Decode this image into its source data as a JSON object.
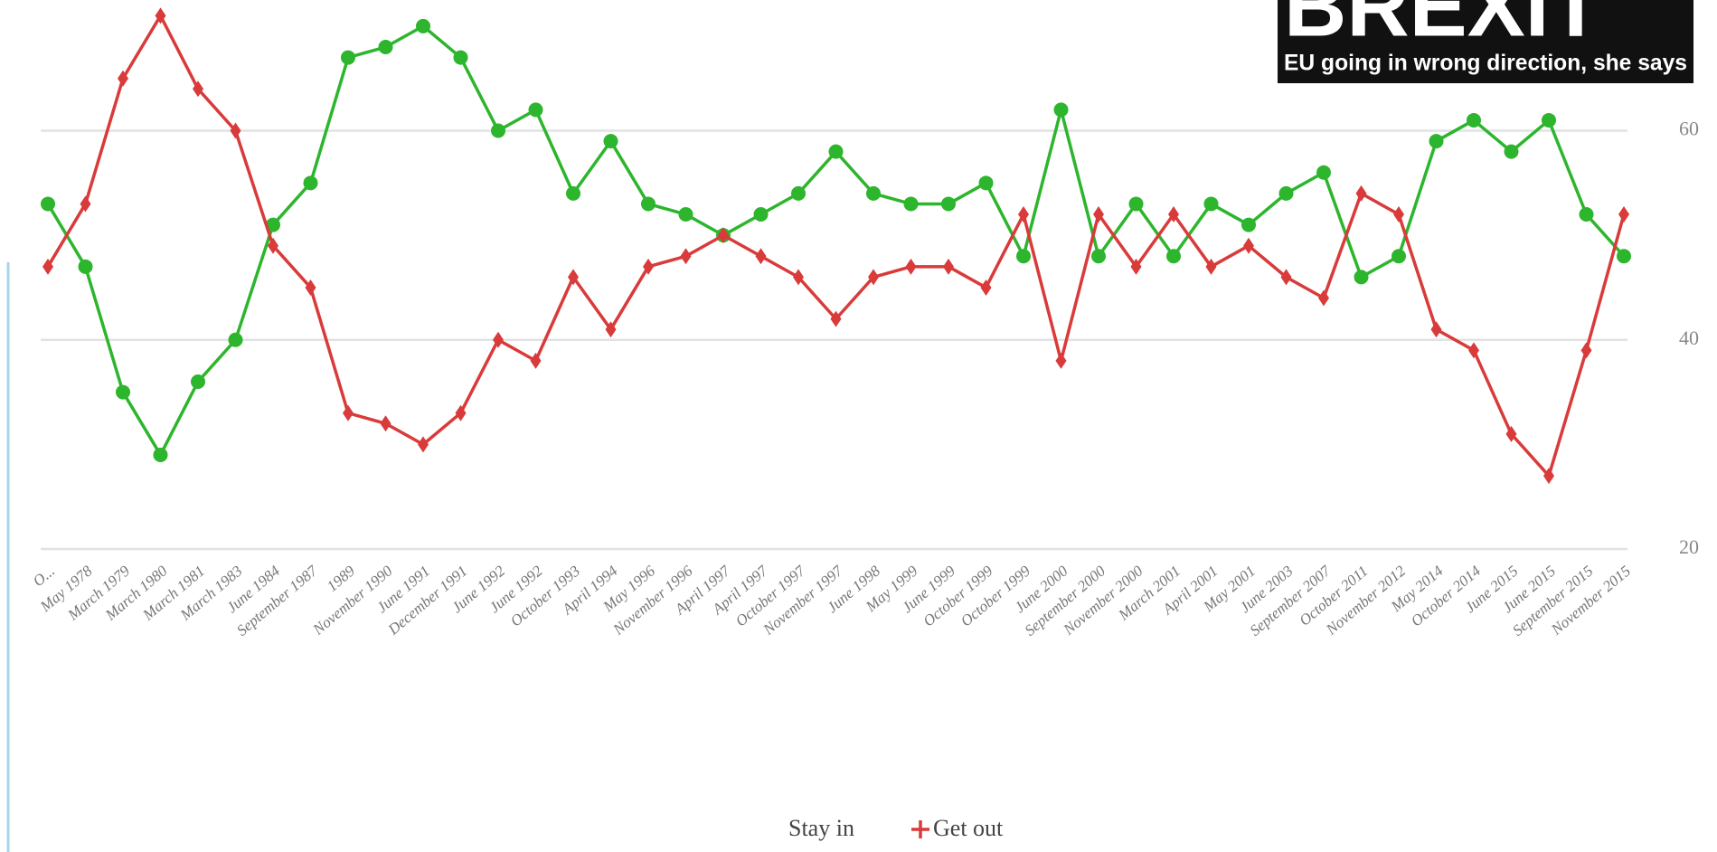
{
  "chart_data": {
    "type": "line",
    "annotations": [
      "BREXIT",
      "EU going in wrong direction, she says"
    ],
    "categories": [
      "O...",
      "May 1978",
      "March 1979",
      "March 1980",
      "March 1981",
      "March 1983",
      "June 1984",
      "September 1987",
      "1989",
      "November 1990",
      "June 1991",
      "December 1991",
      "June 1992",
      "June 1992",
      "October 1993",
      "April 1994",
      "May 1996",
      "November 1996",
      "April 1997",
      "April 1997",
      "October 1997",
      "November 1997",
      "June 1998",
      "May 1999",
      "June 1999",
      "October 1999",
      "October 1999",
      "June 2000",
      "September 2000",
      "November 2000",
      "March 2001",
      "April 2001",
      "May 2001",
      "June 2003",
      "September 2007",
      "October 2011",
      "November 2012",
      "May 2014",
      "October 2014",
      "June 2015",
      "June 2015",
      "September 2015",
      "November 2015"
    ],
    "series": [
      {
        "name": "Stay in",
        "color": "#2db52d",
        "values": [
          53,
          47,
          35,
          29,
          36,
          40,
          51,
          55,
          67,
          68,
          70,
          67,
          60,
          62,
          54,
          59,
          53,
          52,
          50,
          52,
          54,
          58,
          54,
          53,
          53,
          55,
          48,
          62,
          48,
          53,
          48,
          53,
          51,
          54,
          56,
          46,
          48,
          59,
          61,
          58,
          61,
          52,
          48
        ]
      },
      {
        "name": "Get out",
        "color": "#d93a3a",
        "values": [
          47,
          53,
          65,
          71,
          64,
          60,
          49,
          45,
          33,
          32,
          30,
          33,
          40,
          38,
          46,
          41,
          47,
          48,
          50,
          48,
          46,
          42,
          46,
          47,
          47,
          45,
          52,
          38,
          52,
          47,
          52,
          47,
          49,
          46,
          44,
          54,
          52,
          41,
          39,
          31,
          27,
          39,
          52
        ]
      }
    ],
    "ylim": [
      20,
      72.5
    ],
    "yticks": [
      20,
      40,
      60
    ],
    "grid": true
  }
}
